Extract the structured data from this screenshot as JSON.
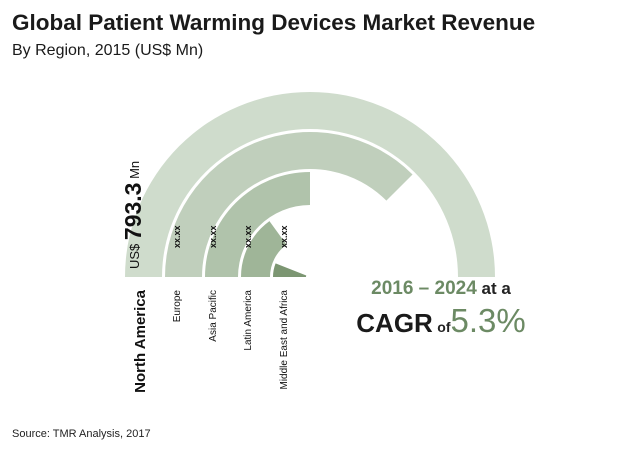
{
  "title": "Global Patient Warming Devices Market Revenue",
  "subtitle": "By Region, 2015 (US$ Mn)",
  "chart_data": {
    "type": "radial-bar",
    "categories": [
      "North America",
      "Europe",
      "Asia Pacific",
      "Latin America",
      "Middle East and Africa"
    ],
    "value_labels": [
      "US$ 793.3 Mn",
      "xx.xx",
      "xx.xx",
      "xx.xx",
      "xx.xx"
    ],
    "sweep_fraction": [
      1.0,
      0.75,
      0.5,
      0.3,
      0.12
    ],
    "value_label_parts": {
      "prefix": "US$ ",
      "number": "793.3",
      "unit": " Mn"
    },
    "colors": [
      "#cfdccc",
      "#c0cfbc",
      "#b0c3ab",
      "#9fb598",
      "#7c9672"
    ]
  },
  "cagr": {
    "years": "2016 – 2024",
    "at_a": " at a",
    "label": "CAGR",
    "of": "of",
    "value": "5.3%"
  },
  "source": "Source: TMR Analysis, 2017"
}
